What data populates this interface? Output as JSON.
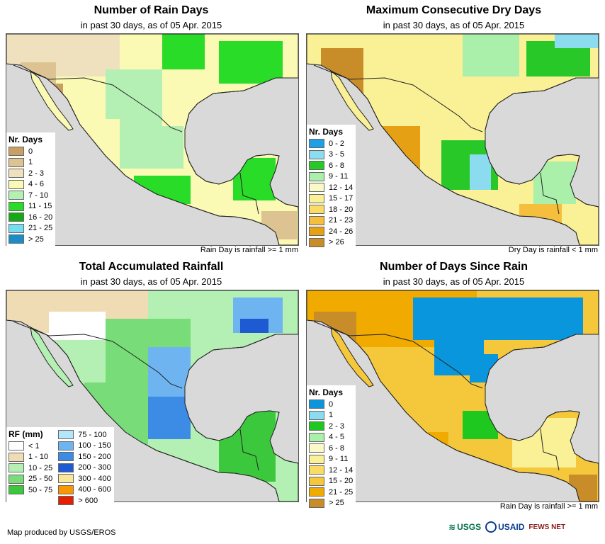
{
  "panels": [
    {
      "id": "rain_days",
      "title": "Number of Rain Days",
      "subtitle": "in past 30 days, as of 05 Apr. 2015",
      "footnote": "Rain Day is rainfall >= 1 mm",
      "legend_title": "Nr. Days",
      "legend": [
        {
          "label": "0",
          "color": "#c8a064"
        },
        {
          "label": "1",
          "color": "#dcc391"
        },
        {
          "label": "2 - 3",
          "color": "#f0e1be"
        },
        {
          "label": "4 - 6",
          "color": "#fafab4"
        },
        {
          "label": "7 - 10",
          "color": "#b4f0b4"
        },
        {
          "label": "11 - 15",
          "color": "#28dc28"
        },
        {
          "label": "16 - 20",
          "color": "#14aa14"
        },
        {
          "label": "21 - 25",
          "color": "#78dcf0"
        },
        {
          "label": "> 25",
          "color": "#1a8cc8"
        }
      ]
    },
    {
      "id": "max_dry_days",
      "title": "Maximum Consecutive Dry Days",
      "subtitle": "in past 30 days, as of 05 Apr. 2015",
      "footnote": "Dry Day is rainfall < 1 mm",
      "legend_title": "Nr. Days",
      "legend": [
        {
          "label": "0 - 2",
          "color": "#1ea0e6"
        },
        {
          "label": "3 - 5",
          "color": "#8cdcf0"
        },
        {
          "label": "6 - 8",
          "color": "#28c828"
        },
        {
          "label": "9 - 11",
          "color": "#aaf0aa"
        },
        {
          "label": "12 - 14",
          "color": "#fafac8"
        },
        {
          "label": "15 - 17",
          "color": "#faf096"
        },
        {
          "label": "18 - 20",
          "color": "#fadc64"
        },
        {
          "label": "21 - 23",
          "color": "#f5be3c"
        },
        {
          "label": "24 - 26",
          "color": "#e6a014"
        },
        {
          "label": "> 26",
          "color": "#c88c28"
        }
      ]
    },
    {
      "id": "total_rainfall",
      "title": "Total Accumulated Rainfall",
      "subtitle": "in past 30 days, as of 05 Apr. 2015",
      "footnote": "",
      "legend_title": "RF (mm)",
      "legend_col1": [
        {
          "label": "< 1",
          "color": "#ffffff"
        },
        {
          "label": "1 - 10",
          "color": "#f0dcb4"
        },
        {
          "label": "10 - 25",
          "color": "#b4f0b4"
        },
        {
          "label": "25 - 50",
          "color": "#78dc78"
        },
        {
          "label": "50 - 75",
          "color": "#3cc83c"
        }
      ],
      "legend_col2": [
        {
          "label": "75 - 100",
          "color": "#b4e6fa"
        },
        {
          "label": "100 - 150",
          "color": "#6eb4f0"
        },
        {
          "label": "150 - 200",
          "color": "#3c8ce6"
        },
        {
          "label": "200 - 300",
          "color": "#1e5ad2"
        },
        {
          "label": "300 - 400",
          "color": "#fae69b"
        },
        {
          "label": "400 - 600",
          "color": "#fa9600"
        },
        {
          "label": "> 600",
          "color": "#e61e00"
        }
      ]
    },
    {
      "id": "days_since_rain",
      "title": "Number of Days Since Rain",
      "subtitle": "in past 30 days, as of 05 Apr. 2015",
      "footnote": "Rain Day is rainfall >= 1 mm",
      "legend_title": "Nr. Days",
      "legend": [
        {
          "label": "0",
          "color": "#0a96dc"
        },
        {
          "label": "1",
          "color": "#8cdcf0"
        },
        {
          "label": "2 - 3",
          "color": "#1ec81e"
        },
        {
          "label": "4 - 5",
          "color": "#aaf0aa"
        },
        {
          "label": "6 - 8",
          "color": "#fafac8"
        },
        {
          "label": "9 - 11",
          "color": "#faf096"
        },
        {
          "label": "12 - 14",
          "color": "#fadc64"
        },
        {
          "label": "15 - 20",
          "color": "#f5c83c"
        },
        {
          "label": "21 - 25",
          "color": "#f0aa00"
        },
        {
          "label": "> 25",
          "color": "#c88c28"
        }
      ]
    }
  ],
  "credit": "Map produced by USGS/EROS",
  "logos": {
    "usgs": "USGS",
    "usaid": "USAID",
    "fews": "FEWS NET"
  },
  "map_background": "#d9d9d9"
}
